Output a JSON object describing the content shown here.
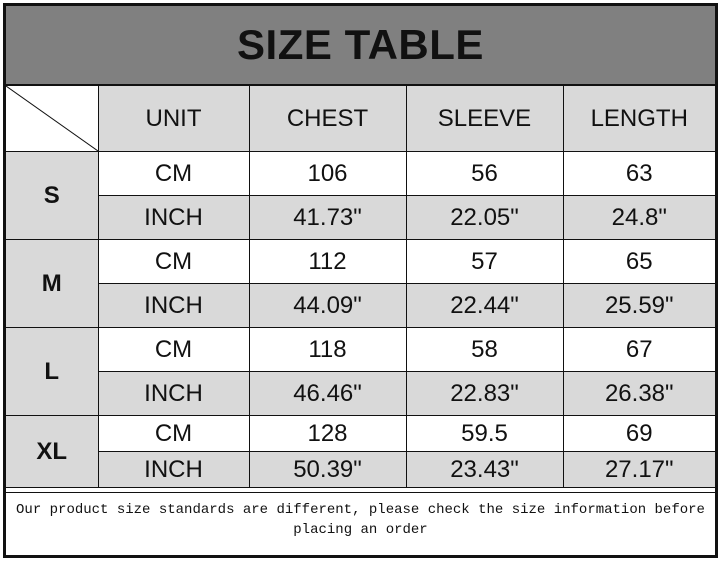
{
  "title": "SIZE TABLE",
  "headers": [
    "UNIT",
    "CHEST",
    "SLEEVE",
    "LENGTH"
  ],
  "sizes": [
    {
      "size": "S",
      "rows": [
        [
          "CM",
          "106",
          "56",
          "63"
        ],
        [
          "INCH",
          "41.73\"",
          "22.05\"",
          "24.8\""
        ]
      ]
    },
    {
      "size": "M",
      "rows": [
        [
          "CM",
          "112",
          "57",
          "65"
        ],
        [
          "INCH",
          "44.09\"",
          "22.44\"",
          "25.59\""
        ]
      ]
    },
    {
      "size": "L",
      "rows": [
        [
          "CM",
          "118",
          "58",
          "67"
        ],
        [
          "INCH",
          "46.46\"",
          "22.83\"",
          "26.38\""
        ]
      ]
    },
    {
      "size": "XL",
      "rows": [
        [
          "CM",
          "128",
          "59.5",
          "69"
        ],
        [
          "INCH",
          "50.39\"",
          "23.43\"",
          "27.17\""
        ]
      ]
    }
  ],
  "note": "Our product size standards are different, please check the size information before placing an order",
  "colors": {
    "title_bg": "#808080",
    "shade": "#d9d9d9",
    "border": "#111111"
  }
}
